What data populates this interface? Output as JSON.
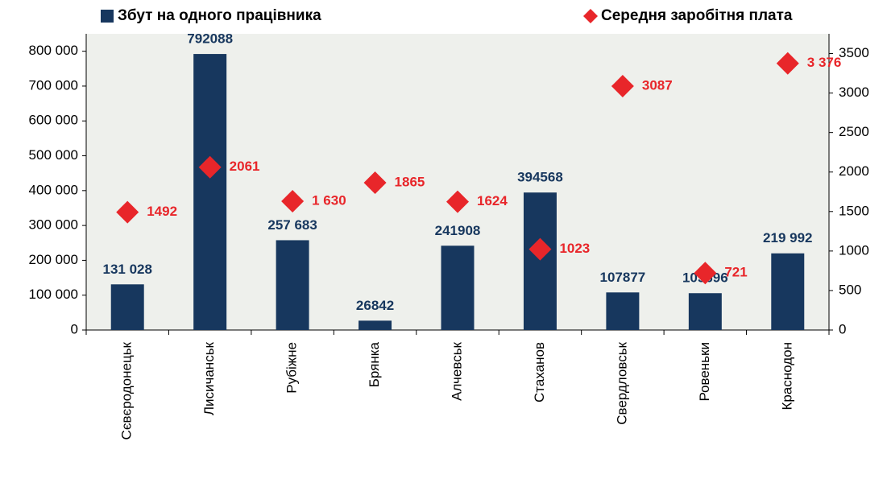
{
  "chart_data": {
    "type": "bar",
    "categories": [
      "Сєвєродонецьк",
      "Лисичанськ",
      "Рубіжне",
      "Брянка",
      "Алчевськ",
      "Стаханов",
      "Свердловськ",
      "Ровеньки",
      "Краснодон"
    ],
    "series": [
      {
        "name": "Збут на одного працівника",
        "color": "#17375e",
        "marker": "bar",
        "values": [
          131028,
          792088,
          257683,
          26842,
          241908,
          394568,
          107877,
          105696,
          219992
        ],
        "value_labels": [
          "131 028",
          "792088",
          "257 683",
          "26842",
          "241908",
          "394568",
          "107877",
          "105696",
          "219 992"
        ]
      },
      {
        "name": "Середня заробітня плата",
        "color": "#e8262a",
        "marker": "diamond",
        "axis": "y2",
        "values": [
          1492,
          2061,
          1630,
          1865,
          1624,
          1023,
          3087,
          721,
          3376
        ],
        "value_labels": [
          "1492",
          "2061",
          "1 630",
          "1865",
          "1624",
          "1023",
          "3087",
          "721",
          "3 376"
        ]
      }
    ],
    "ylim": [
      0,
      850000
    ],
    "yticks": [
      0,
      {
        "value": 100000,
        "label": "100 000"
      },
      {
        "value": 200000,
        "label": "200 000"
      },
      {
        "value": 300000,
        "label": "300 000"
      },
      {
        "value": 400000,
        "label": "400 000"
      },
      {
        "value": 500000,
        "label": "500 000"
      },
      {
        "value": 600000,
        "label": "600 000"
      },
      {
        "value": 700000,
        "label": "700 000"
      },
      {
        "value": 800000,
        "label": "800 000"
      }
    ],
    "y2lim": [
      0,
      3750
    ],
    "y2ticks": [
      0,
      500,
      1000,
      1500,
      2000,
      2500,
      3000,
      3500
    ],
    "legend": "top"
  }
}
